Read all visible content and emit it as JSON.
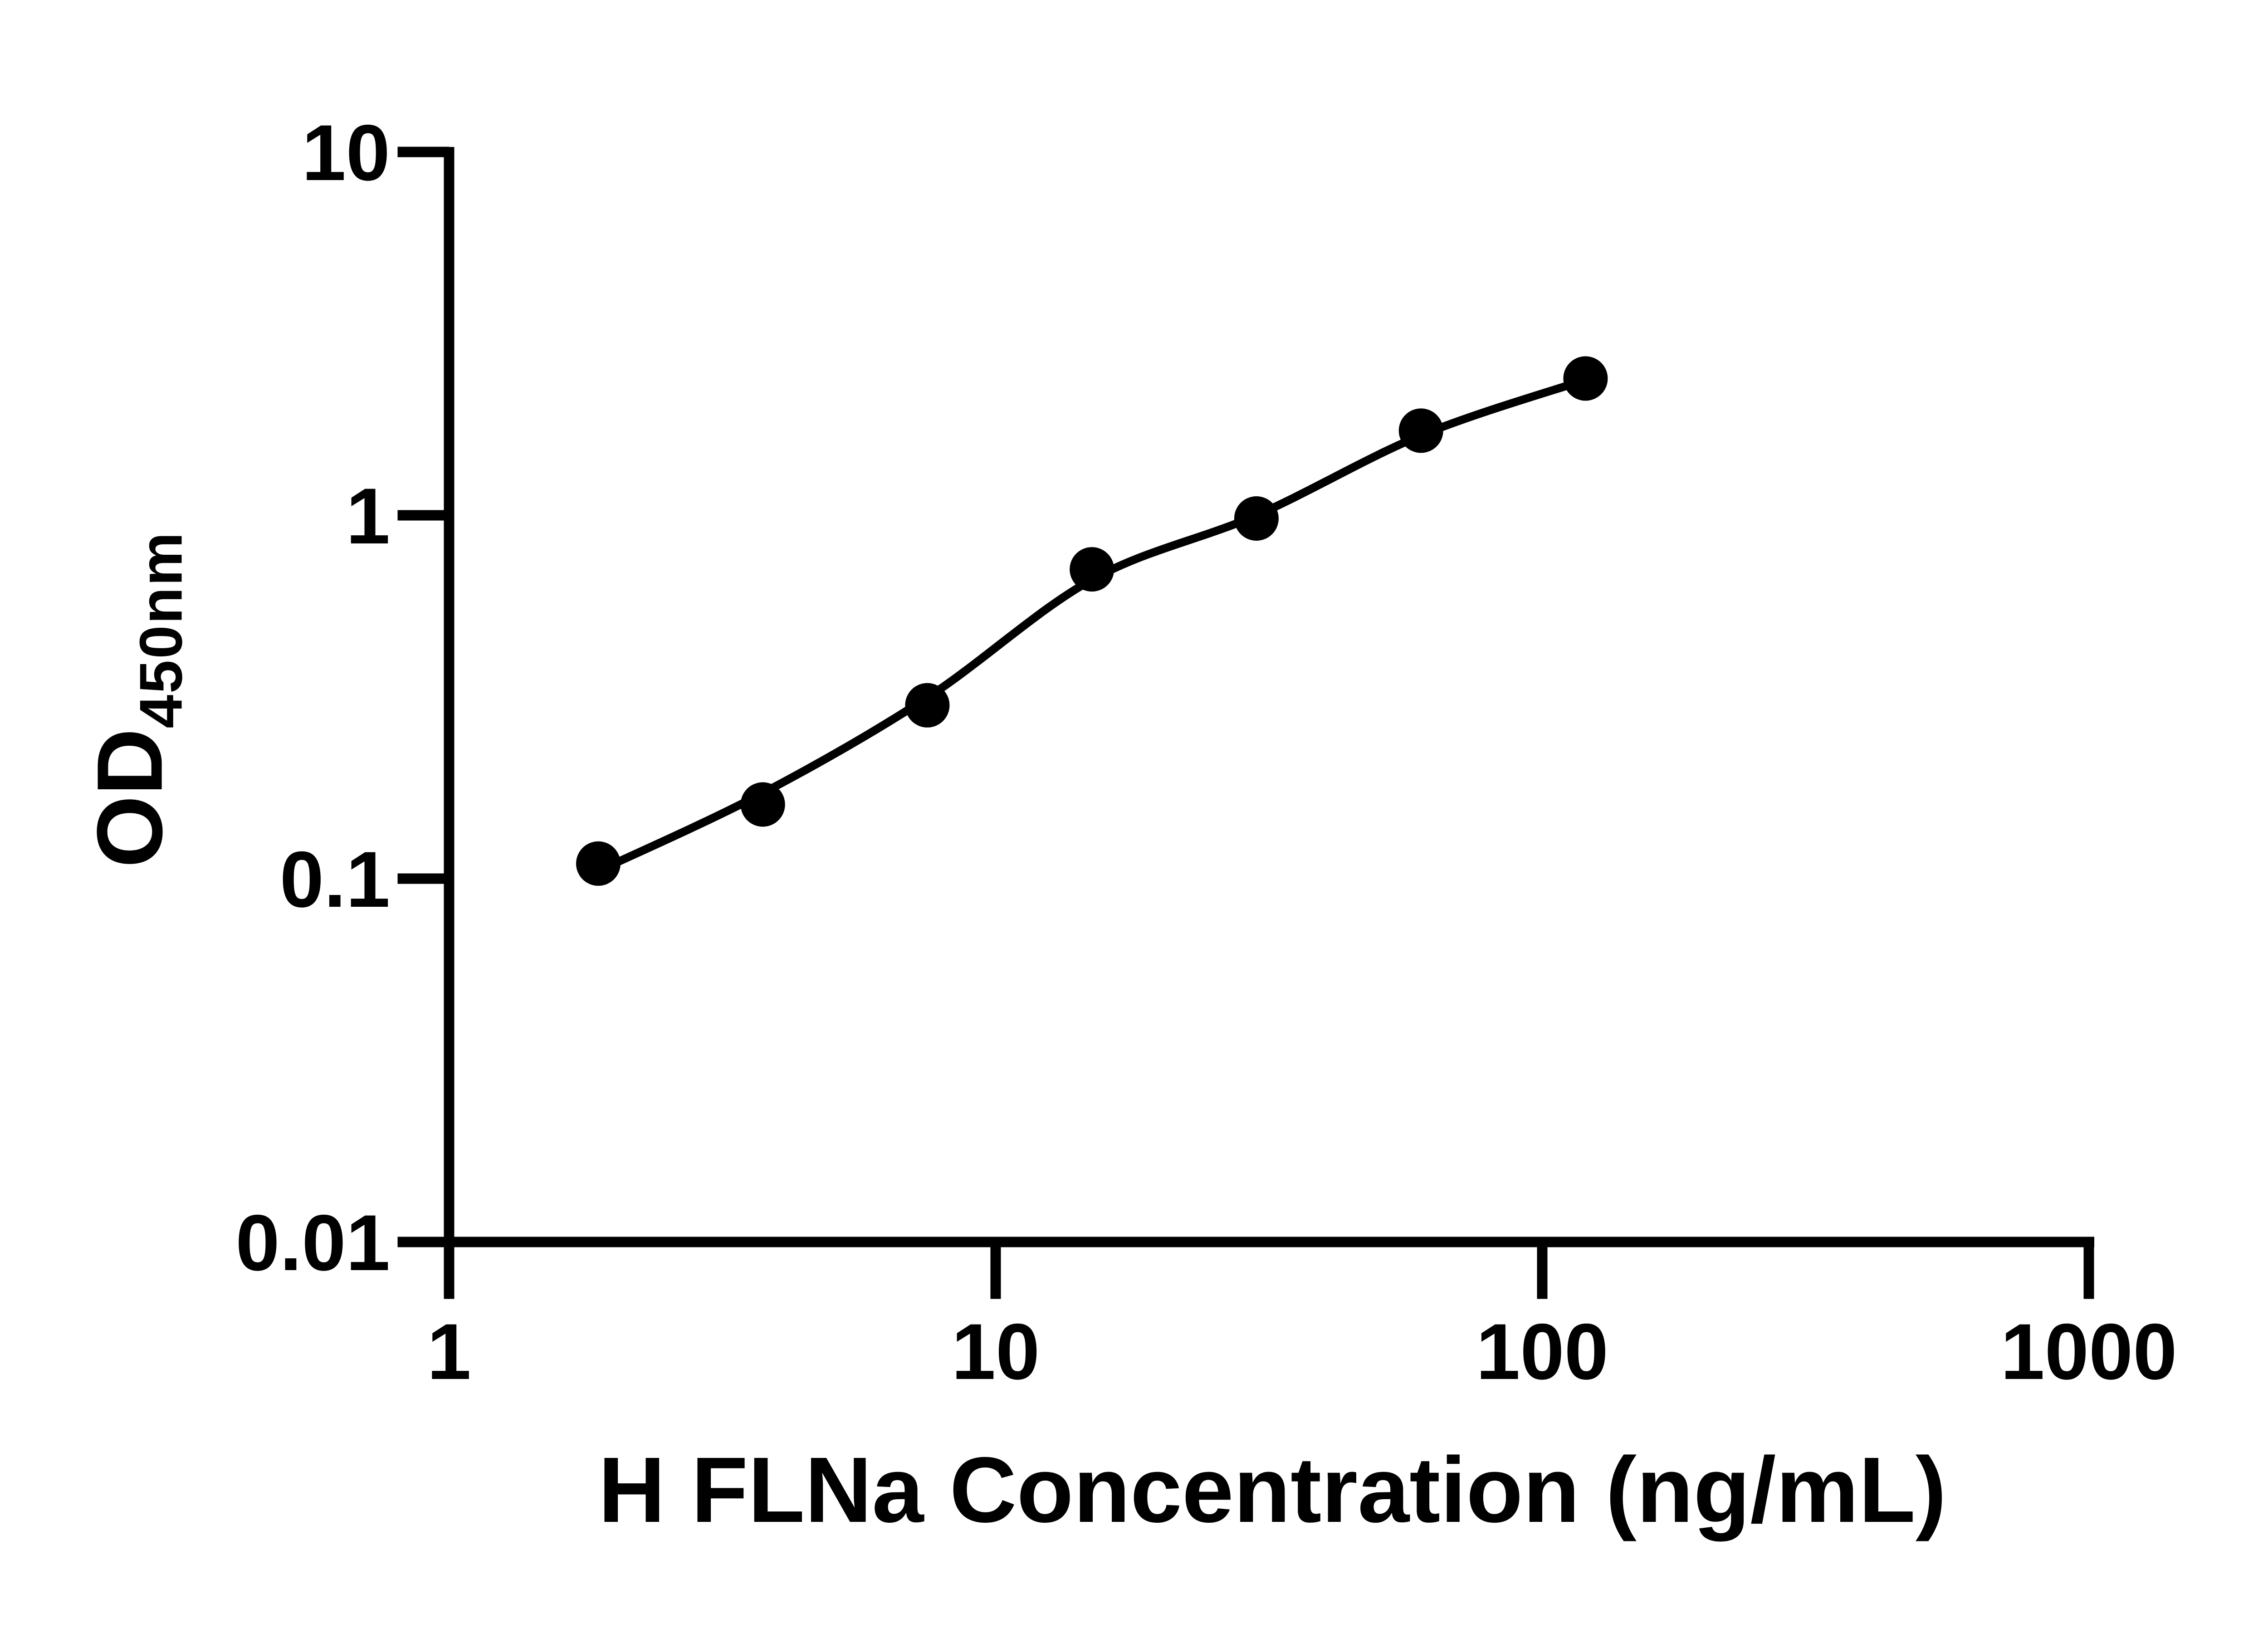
{
  "figure": {
    "background_color": "#ffffff",
    "ink_color": "#000000"
  },
  "titles": {
    "x": "H FLNa Concentration (ng/mL)",
    "y_main": "OD",
    "y_sub": "450nm"
  },
  "chart_data": {
    "type": "scatter",
    "title": "",
    "xlabel": "H FLNa Concentration (ng/mL)",
    "ylabel": "OD450nm",
    "x_scale": "log",
    "y_scale": "log",
    "xlim": [
      1,
      1000
    ],
    "ylim": [
      0.01,
      10
    ],
    "x_ticks": [
      1,
      10,
      100,
      1000
    ],
    "x_tick_labels": [
      "1",
      "10",
      "100",
      "1000"
    ],
    "y_ticks": [
      10,
      1,
      0.1,
      0.01
    ],
    "y_tick_labels": [
      "10",
      "1",
      "0.1",
      "0.01"
    ],
    "grid": false,
    "legend": "none",
    "marker": "filled-circle",
    "marker_color": "#000000",
    "line_color": "#000000",
    "points": [
      {
        "x": 1.875,
        "y": 0.11
      },
      {
        "x": 3.75,
        "y": 0.16
      },
      {
        "x": 7.5,
        "y": 0.3
      },
      {
        "x": 15,
        "y": 0.71
      },
      {
        "x": 30,
        "y": 0.98
      },
      {
        "x": 60,
        "y": 1.71
      },
      {
        "x": 120,
        "y": 2.38
      }
    ],
    "fit_curve": [
      {
        "x": 1.875,
        "y": 0.105
      },
      {
        "x": 3.75,
        "y": 0.172
      },
      {
        "x": 7.5,
        "y": 0.315
      },
      {
        "x": 15,
        "y": 0.665
      },
      {
        "x": 30,
        "y": 1.0
      },
      {
        "x": 60,
        "y": 1.66
      },
      {
        "x": 120,
        "y": 2.36
      }
    ]
  }
}
